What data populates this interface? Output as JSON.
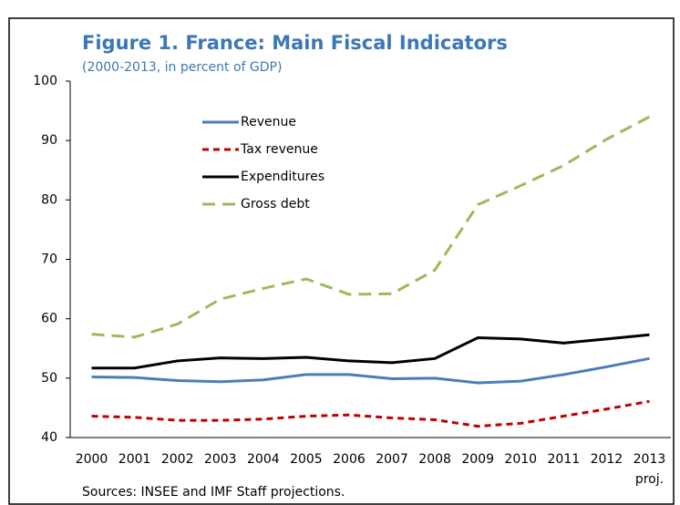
{
  "chart_data": {
    "type": "line",
    "title": "Figure 1. France: Main Fiscal Indicators",
    "subtitle": "(2000-2013, in percent of GDP)",
    "categories": [
      "2000",
      "2001",
      "2002",
      "2003",
      "2004",
      "2005",
      "2006",
      "2007",
      "2008",
      "2009",
      "2010",
      "2011",
      "2012",
      "2013"
    ],
    "category_note": "proj.",
    "series": [
      {
        "name": "Revenue",
        "color": "#4a7ebb",
        "style": "solid",
        "values": [
          50.2,
          50.1,
          49.6,
          49.4,
          49.7,
          50.6,
          50.6,
          49.9,
          50.0,
          49.2,
          49.5,
          50.6,
          51.9,
          53.3
        ]
      },
      {
        "name": "Tax revenue",
        "color": "#c00000",
        "style": "dashed",
        "values": [
          43.6,
          43.4,
          42.9,
          42.9,
          43.1,
          43.6,
          43.8,
          43.3,
          43.0,
          41.9,
          42.4,
          43.6,
          44.8,
          46.1
        ]
      },
      {
        "name": "Expenditures",
        "color": "#000000",
        "style": "solid",
        "values": [
          51.7,
          51.7,
          52.9,
          53.4,
          53.3,
          53.5,
          52.9,
          52.6,
          53.3,
          56.8,
          56.6,
          55.9,
          56.6,
          57.3
        ]
      },
      {
        "name": "Gross debt",
        "color": "#9bbb59",
        "style": "dashed",
        "values": [
          57.4,
          56.9,
          59.1,
          63.3,
          65.1,
          66.7,
          64.1,
          64.2,
          68.2,
          79.2,
          82.4,
          85.8,
          90.2,
          94.0
        ]
      }
    ],
    "ylim": [
      40,
      100
    ],
    "yticks": [
      40,
      50,
      60,
      70,
      80,
      90,
      100
    ],
    "grid": false,
    "legend_position": "upper-left",
    "source": "Sources: INSEE and IMF Staff projections."
  }
}
